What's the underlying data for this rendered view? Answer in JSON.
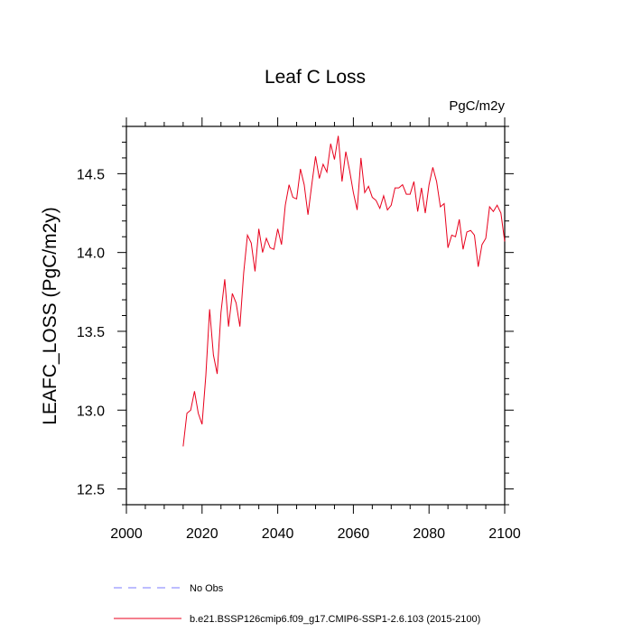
{
  "chart_data": {
    "type": "line",
    "title": "Leaf C Loss",
    "units_label": "PgC/m2y",
    "ylabel": "LEAFC_LOSS  (PgC/m2y)",
    "xlabel": "",
    "xlim": [
      2000,
      2100
    ],
    "ylim": [
      12.4,
      14.8
    ],
    "x_ticks": [
      2000,
      2020,
      2040,
      2060,
      2080,
      2100
    ],
    "x_tick_labels": [
      "2000",
      "2020",
      "2040",
      "2060",
      "2080",
      "2100"
    ],
    "y_ticks": [
      12.5,
      13.0,
      13.5,
      14.0,
      14.5
    ],
    "y_tick_labels": [
      "12.5",
      "13.0",
      "13.5",
      "14.0",
      "14.5"
    ],
    "grid": false,
    "legend_position": "bottom",
    "series": [
      {
        "name": "No Obs",
        "color": "#7b7bff",
        "style": "dashed",
        "x": [],
        "y": []
      },
      {
        "name": "b.e21.BSSP126cmip6.f09_g17.CMIP6-SSP1-2.6.103 (2015-2100)",
        "color": "#e8001c",
        "style": "solid",
        "x": [
          2015,
          2016,
          2017,
          2018,
          2019,
          2020,
          2021,
          2022,
          2023,
          2024,
          2025,
          2026,
          2027,
          2028,
          2029,
          2030,
          2031,
          2032,
          2033,
          2034,
          2035,
          2036,
          2037,
          2038,
          2039,
          2040,
          2041,
          2042,
          2043,
          2044,
          2045,
          2046,
          2047,
          2048,
          2049,
          2050,
          2051,
          2052,
          2053,
          2054,
          2055,
          2056,
          2057,
          2058,
          2059,
          2060,
          2061,
          2062,
          2063,
          2064,
          2065,
          2066,
          2067,
          2068,
          2069,
          2070,
          2071,
          2072,
          2073,
          2074,
          2075,
          2076,
          2077,
          2078,
          2079,
          2080,
          2081,
          2082,
          2083,
          2084,
          2085,
          2086,
          2087,
          2088,
          2089,
          2090,
          2091,
          2092,
          2093,
          2094,
          2095,
          2096,
          2097,
          2098,
          2099,
          2100
        ],
        "y": [
          12.77,
          12.98,
          13.0,
          13.12,
          12.98,
          12.91,
          13.22,
          13.64,
          13.35,
          13.23,
          13.62,
          13.83,
          13.53,
          13.74,
          13.68,
          13.53,
          13.87,
          14.11,
          14.06,
          13.88,
          14.15,
          14.0,
          14.09,
          14.03,
          14.02,
          14.15,
          14.05,
          14.3,
          14.43,
          14.35,
          14.34,
          14.53,
          14.43,
          14.24,
          14.43,
          14.61,
          14.47,
          14.56,
          14.51,
          14.69,
          14.59,
          14.74,
          14.45,
          14.64,
          14.52,
          14.38,
          14.27,
          14.6,
          14.38,
          14.42,
          14.35,
          14.33,
          14.28,
          14.36,
          14.27,
          14.3,
          14.41,
          14.41,
          14.43,
          14.37,
          14.37,
          14.45,
          14.26,
          14.41,
          14.25,
          14.43,
          14.54,
          14.45,
          14.29,
          14.31,
          14.03,
          14.11,
          14.1,
          14.21,
          14.02,
          14.13,
          14.14,
          14.11,
          13.91,
          14.05,
          14.09,
          14.29,
          14.26,
          14.3,
          14.25,
          14.07
        ]
      }
    ]
  }
}
